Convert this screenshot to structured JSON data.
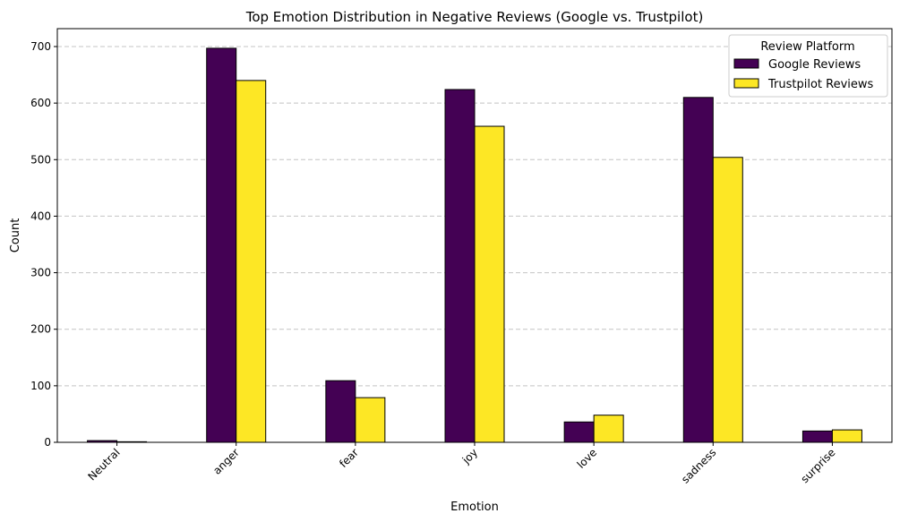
{
  "chart_data": {
    "type": "bar",
    "title": "Top Emotion Distribution in Negative Reviews (Google vs. Trustpilot)",
    "xlabel": "Emotion",
    "ylabel": "Count",
    "categories": [
      "Neutral",
      "anger",
      "fear",
      "joy",
      "love",
      "sadness",
      "surprise"
    ],
    "series": [
      {
        "name": "Google Reviews",
        "color": "#440154",
        "values": [
          3,
          697,
          109,
          624,
          36,
          610,
          20
        ]
      },
      {
        "name": "Trustpilot Reviews",
        "color": "#fde725",
        "values": [
          1,
          640,
          79,
          559,
          48,
          504,
          22
        ]
      }
    ],
    "ylim": [
      0,
      730
    ],
    "yticks": [
      0,
      100,
      200,
      300,
      400,
      500,
      600,
      700
    ],
    "grid": "y dashed",
    "legend": {
      "title": "Review Platform",
      "placement": "top-right"
    }
  }
}
